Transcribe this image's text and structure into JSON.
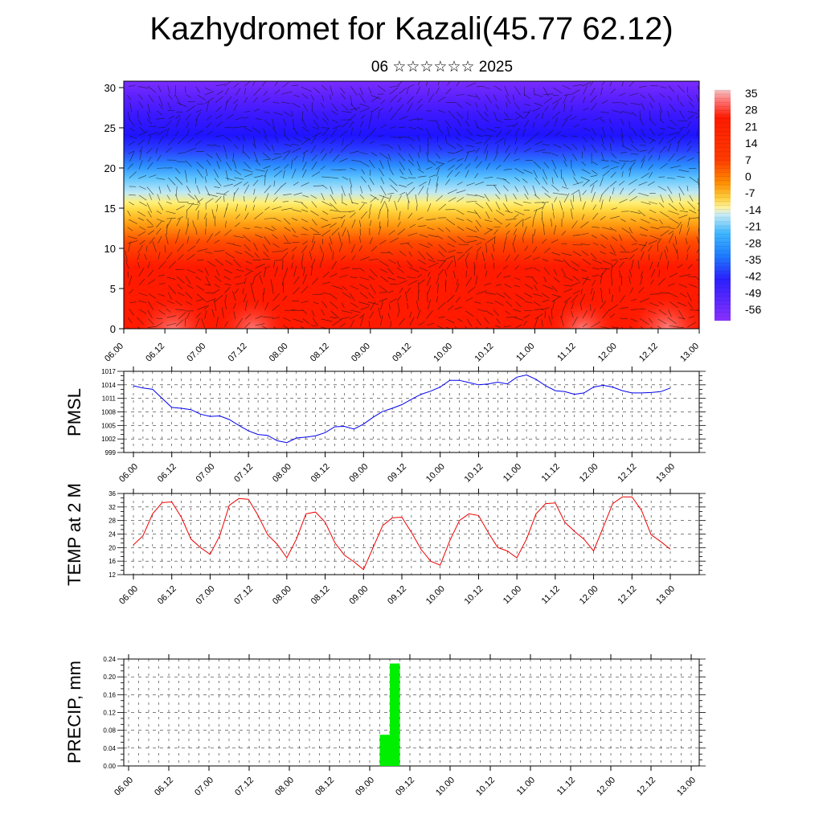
{
  "title": "Kazhydromet for Kazali(45.77 62.12)",
  "subtitle": "06 ☆☆☆☆☆☆ 2025",
  "chart_data": [
    {
      "type": "heatmap",
      "name": "cross-section",
      "y_ticks": [
        "0",
        "5",
        "10",
        "15",
        "20",
        "25",
        "30"
      ],
      "ylim": [
        0,
        30.8
      ],
      "x_ticks": [
        "06.00",
        "06.12",
        "07.00",
        "07.12",
        "08.00",
        "08.12",
        "09.00",
        "09.12",
        "10.00",
        "10.12",
        "11.00",
        "11.12",
        "12.00",
        "12.12",
        "13.00"
      ],
      "colorbar_labels": [
        "35",
        "28",
        "21",
        "14",
        "7",
        "0",
        "-7",
        "-14",
        "-21",
        "-28",
        "-35",
        "-42",
        "-49",
        "-56"
      ],
      "colors": {
        "warm": "#ff1a00",
        "hot": "#ff6a6a",
        "orange": "#ff8c00",
        "yellow": "#ffe850",
        "lightblue": "#b8e6f7",
        "blue": "#1e9bff",
        "deepblue": "#2a1cff",
        "violet": "#7a2cff"
      },
      "vectors_overlay": true
    },
    {
      "type": "line",
      "name": "pmsl",
      "ylabel": "PMSL",
      "y_ticks": [
        999,
        1002,
        1005,
        1008,
        1011,
        1014,
        1017
      ],
      "ylim": [
        999,
        1017
      ],
      "x_ticks": [
        "06.00",
        "06.12",
        "07.00",
        "07.12",
        "08.00",
        "08.12",
        "09.00",
        "09.12",
        "10.00",
        "10.12",
        "11.00",
        "11.12",
        "12.00",
        "12.12",
        "13.00"
      ],
      "color": "#0000ee",
      "x": [
        0,
        3,
        6,
        9,
        12,
        15,
        18,
        21,
        24,
        27,
        30,
        33,
        36,
        39,
        42,
        45,
        48,
        51,
        54,
        57,
        60,
        63,
        66,
        69,
        72,
        75,
        78,
        81,
        84,
        87,
        90,
        93,
        96,
        99,
        102,
        105,
        108,
        111,
        114,
        117,
        120,
        123,
        126,
        129,
        132,
        135,
        138,
        141,
        144,
        147,
        150,
        153,
        156,
        159,
        162,
        165,
        168
      ],
      "values": [
        1013.8,
        1013.3,
        1013.0,
        1011.0,
        1009.0,
        1008.8,
        1008.5,
        1007.5,
        1007.0,
        1007.1,
        1006.3,
        1005.0,
        1003.8,
        1003.0,
        1002.8,
        1001.6,
        1001.2,
        1002.2,
        1002.4,
        1002.7,
        1003.4,
        1004.7,
        1004.8,
        1004.2,
        1005.3,
        1006.8,
        1008.1,
        1008.8,
        1009.6,
        1010.8,
        1011.9,
        1012.6,
        1013.5,
        1015.0,
        1015.0,
        1014.5,
        1014.0,
        1014.2,
        1014.6,
        1014.2,
        1015.7,
        1016.2,
        1015.2,
        1013.8,
        1012.7,
        1012.5,
        1011.9,
        1012.2,
        1013.5,
        1013.9,
        1013.5,
        1012.7,
        1012.2,
        1012.2,
        1012.3,
        1012.5,
        1013.3
      ]
    },
    {
      "type": "line",
      "name": "temp",
      "ylabel": "TEMP at 2 M",
      "y_ticks": [
        12,
        16,
        20,
        24,
        28,
        32,
        36
      ],
      "ylim": [
        12,
        36
      ],
      "x_ticks": [
        "06.00",
        "06.12",
        "07.00",
        "07.12",
        "08.00",
        "08.12",
        "09.00",
        "09.12",
        "10.00",
        "10.12",
        "11.00",
        "11.12",
        "12.00",
        "12.12",
        "13.00"
      ],
      "color": "#ee0000",
      "x": [
        0,
        3,
        6,
        9,
        12,
        15,
        18,
        21,
        24,
        27,
        30,
        33,
        36,
        39,
        42,
        45,
        48,
        51,
        54,
        57,
        60,
        63,
        66,
        69,
        72,
        75,
        78,
        81,
        84,
        87,
        90,
        93,
        96,
        99,
        102,
        105,
        108,
        111,
        114,
        117,
        120,
        123,
        126,
        129,
        132,
        135,
        138,
        141,
        144,
        147,
        150,
        153,
        156,
        159,
        162,
        165,
        168
      ],
      "values": [
        20.8,
        23.5,
        30.0,
        33.3,
        33.5,
        29.0,
        22.5,
        20.0,
        18.0,
        23.5,
        32.5,
        34.5,
        34.3,
        29.5,
        23.8,
        21.0,
        17.0,
        22.5,
        30.0,
        30.5,
        27.5,
        21.5,
        17.8,
        15.8,
        13.5,
        20.0,
        26.5,
        28.8,
        29.0,
        24.5,
        19.5,
        16.0,
        14.8,
        22.0,
        28.0,
        30.0,
        29.5,
        24.5,
        20.0,
        19.0,
        17.0,
        22.5,
        30.0,
        33.0,
        33.2,
        27.5,
        24.8,
        22.5,
        19.0,
        26.0,
        33.0,
        35.0,
        35.0,
        31.0,
        23.8,
        21.8,
        19.5
      ]
    },
    {
      "type": "bar",
      "name": "precip",
      "ylabel": "PRECIP, mm",
      "y_ticks": [
        "0.00",
        "0.04",
        "0.08",
        "0.12",
        "0.16",
        "0.20",
        "0.24"
      ],
      "ylim": [
        0,
        0.24
      ],
      "x_ticks": [
        "06.00",
        "06.12",
        "07.00",
        "07.12",
        "08.00",
        "08.12",
        "09.00",
        "09.12",
        "10.00",
        "10.12",
        "11.00",
        "11.12",
        "12.00",
        "12.12",
        "13.00"
      ],
      "color": "#00ee00",
      "bars": [
        {
          "x_start": 75,
          "x_end": 78,
          "value": 0.07
        },
        {
          "x_start": 78,
          "x_end": 81,
          "value": 0.23
        }
      ]
    }
  ]
}
